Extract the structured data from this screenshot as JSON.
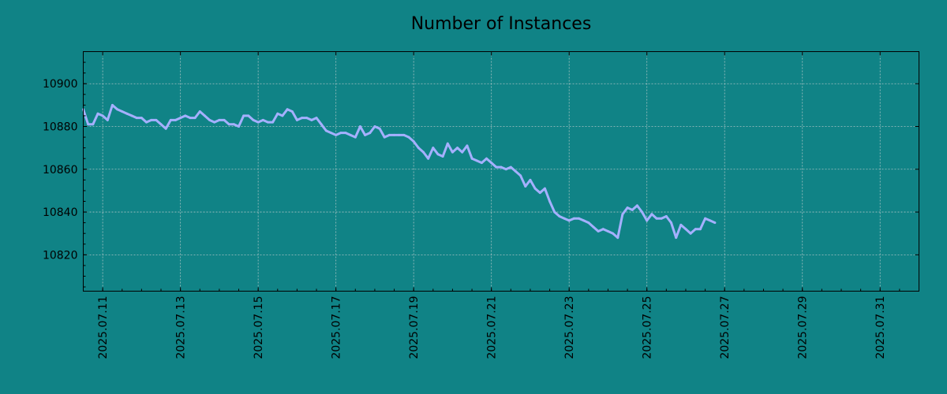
{
  "chart_data": {
    "type": "line",
    "title": "Number of Instances",
    "xlabel": "",
    "ylabel": "",
    "grid": true,
    "background_color": "#108386",
    "line_color": "#a5b0ff",
    "x_range": [
      "2025.07.10 12:00",
      "2025.08.01 00:00"
    ],
    "ylim": [
      10803,
      10915
    ],
    "y_ticks": [
      10820,
      10840,
      10860,
      10880,
      10900
    ],
    "x_ticks": [
      "2025.07.11",
      "2025.07.13",
      "2025.07.15",
      "2025.07.17",
      "2025.07.19",
      "2025.07.21",
      "2025.07.23",
      "2025.07.25",
      "2025.07.27",
      "2025.07.29",
      "2025.07.31"
    ],
    "series": [
      {
        "points": [
          [
            "2025.07.10 12:00",
            10888
          ],
          [
            "2025.07.10 15:00",
            10881
          ],
          [
            "2025.07.10 18:00",
            10881
          ],
          [
            "2025.07.10 21:00",
            10886
          ],
          [
            "2025.07.11 00:00",
            10885
          ],
          [
            "2025.07.11 03:00",
            10883
          ],
          [
            "2025.07.11 06:00",
            10890
          ],
          [
            "2025.07.11 09:00",
            10888
          ],
          [
            "2025.07.11 12:00",
            10887
          ],
          [
            "2025.07.11 15:00",
            10886
          ],
          [
            "2025.07.11 18:00",
            10885
          ],
          [
            "2025.07.11 21:00",
            10884
          ],
          [
            "2025.07.12 00:00",
            10884
          ],
          [
            "2025.07.12 03:00",
            10882
          ],
          [
            "2025.07.12 06:00",
            10883
          ],
          [
            "2025.07.12 09:00",
            10883
          ],
          [
            "2025.07.12 12:00",
            10881
          ],
          [
            "2025.07.12 15:00",
            10879
          ],
          [
            "2025.07.12 18:00",
            10883
          ],
          [
            "2025.07.12 21:00",
            10883
          ],
          [
            "2025.07.13 00:00",
            10884
          ],
          [
            "2025.07.13 03:00",
            10885
          ],
          [
            "2025.07.13 06:00",
            10884
          ],
          [
            "2025.07.13 09:00",
            10884
          ],
          [
            "2025.07.13 12:00",
            10887
          ],
          [
            "2025.07.13 15:00",
            10885
          ],
          [
            "2025.07.13 18:00",
            10883
          ],
          [
            "2025.07.13 21:00",
            10882
          ],
          [
            "2025.07.14 00:00",
            10883
          ],
          [
            "2025.07.14 03:00",
            10883
          ],
          [
            "2025.07.14 06:00",
            10881
          ],
          [
            "2025.07.14 09:00",
            10881
          ],
          [
            "2025.07.14 12:00",
            10880
          ],
          [
            "2025.07.14 15:00",
            10885
          ],
          [
            "2025.07.14 18:00",
            10885
          ],
          [
            "2025.07.14 21:00",
            10883
          ],
          [
            "2025.07.15 00:00",
            10882
          ],
          [
            "2025.07.15 03:00",
            10883
          ],
          [
            "2025.07.15 06:00",
            10882
          ],
          [
            "2025.07.15 09:00",
            10882
          ],
          [
            "2025.07.15 12:00",
            10886
          ],
          [
            "2025.07.15 15:00",
            10885
          ],
          [
            "2025.07.15 18:00",
            10888
          ],
          [
            "2025.07.15 21:00",
            10887
          ],
          [
            "2025.07.16 00:00",
            10883
          ],
          [
            "2025.07.16 03:00",
            10884
          ],
          [
            "2025.07.16 06:00",
            10884
          ],
          [
            "2025.07.16 09:00",
            10883
          ],
          [
            "2025.07.16 12:00",
            10884
          ],
          [
            "2025.07.16 15:00",
            10881
          ],
          [
            "2025.07.16 18:00",
            10878
          ],
          [
            "2025.07.16 21:00",
            10877
          ],
          [
            "2025.07.17 00:00",
            10876
          ],
          [
            "2025.07.17 03:00",
            10877
          ],
          [
            "2025.07.17 06:00",
            10877
          ],
          [
            "2025.07.17 09:00",
            10876
          ],
          [
            "2025.07.17 12:00",
            10875
          ],
          [
            "2025.07.17 15:00",
            10880
          ],
          [
            "2025.07.17 18:00",
            10876
          ],
          [
            "2025.07.17 21:00",
            10877
          ],
          [
            "2025.07.18 00:00",
            10880
          ],
          [
            "2025.07.18 03:00",
            10879
          ],
          [
            "2025.07.18 06:00",
            10875
          ],
          [
            "2025.07.18 09:00",
            10876
          ],
          [
            "2025.07.18 12:00",
            10876
          ],
          [
            "2025.07.18 15:00",
            10876
          ],
          [
            "2025.07.18 18:00",
            10876
          ],
          [
            "2025.07.18 21:00",
            10875
          ],
          [
            "2025.07.19 00:00",
            10873
          ],
          [
            "2025.07.19 03:00",
            10870
          ],
          [
            "2025.07.19 06:00",
            10868
          ],
          [
            "2025.07.19 09:00",
            10865
          ],
          [
            "2025.07.19 12:00",
            10870
          ],
          [
            "2025.07.19 15:00",
            10867
          ],
          [
            "2025.07.19 18:00",
            10866
          ],
          [
            "2025.07.19 21:00",
            10872
          ],
          [
            "2025.07.20 00:00",
            10868
          ],
          [
            "2025.07.20 03:00",
            10870
          ],
          [
            "2025.07.20 06:00",
            10868
          ],
          [
            "2025.07.20 09:00",
            10871
          ],
          [
            "2025.07.20 12:00",
            10865
          ],
          [
            "2025.07.20 15:00",
            10864
          ],
          [
            "2025.07.20 18:00",
            10863
          ],
          [
            "2025.07.20 21:00",
            10865
          ],
          [
            "2025.07.21 00:00",
            10863
          ],
          [
            "2025.07.21 03:00",
            10861
          ],
          [
            "2025.07.21 06:00",
            10861
          ],
          [
            "2025.07.21 09:00",
            10860
          ],
          [
            "2025.07.21 12:00",
            10861
          ],
          [
            "2025.07.21 15:00",
            10859
          ],
          [
            "2025.07.21 18:00",
            10857
          ],
          [
            "2025.07.21 21:00",
            10852
          ],
          [
            "2025.07.22 00:00",
            10855
          ],
          [
            "2025.07.22 03:00",
            10851
          ],
          [
            "2025.07.22 06:00",
            10849
          ],
          [
            "2025.07.22 09:00",
            10851
          ],
          [
            "2025.07.22 12:00",
            10845
          ],
          [
            "2025.07.22 15:00",
            10840
          ],
          [
            "2025.07.22 18:00",
            10838
          ],
          [
            "2025.07.22 21:00",
            10837
          ],
          [
            "2025.07.23 00:00",
            10836
          ],
          [
            "2025.07.23 03:00",
            10837
          ],
          [
            "2025.07.23 06:00",
            10837
          ],
          [
            "2025.07.23 09:00",
            10836
          ],
          [
            "2025.07.23 12:00",
            10835
          ],
          [
            "2025.07.23 15:00",
            10833
          ],
          [
            "2025.07.23 18:00",
            10831
          ],
          [
            "2025.07.23 21:00",
            10832
          ],
          [
            "2025.07.24 00:00",
            10831
          ],
          [
            "2025.07.24 03:00",
            10830
          ],
          [
            "2025.07.24 06:00",
            10828
          ],
          [
            "2025.07.24 09:00",
            10839
          ],
          [
            "2025.07.24 12:00",
            10842
          ],
          [
            "2025.07.24 15:00",
            10841
          ],
          [
            "2025.07.24 18:00",
            10843
          ],
          [
            "2025.07.24 21:00",
            10840
          ],
          [
            "2025.07.25 00:00",
            10836
          ],
          [
            "2025.07.25 03:00",
            10839
          ],
          [
            "2025.07.25 06:00",
            10837
          ],
          [
            "2025.07.25 09:00",
            10837
          ],
          [
            "2025.07.25 12:00",
            10838
          ],
          [
            "2025.07.25 15:00",
            10835
          ],
          [
            "2025.07.25 18:00",
            10828
          ],
          [
            "2025.07.25 21:00",
            10834
          ],
          [
            "2025.07.26 00:00",
            10832
          ],
          [
            "2025.07.26 03:00",
            10830
          ],
          [
            "2025.07.26 06:00",
            10832
          ],
          [
            "2025.07.26 09:00",
            10832
          ],
          [
            "2025.07.26 12:00",
            10837
          ],
          [
            "2025.07.26 15:00",
            10836
          ],
          [
            "2025.07.26 18:00",
            10835
          ]
        ]
      }
    ]
  }
}
